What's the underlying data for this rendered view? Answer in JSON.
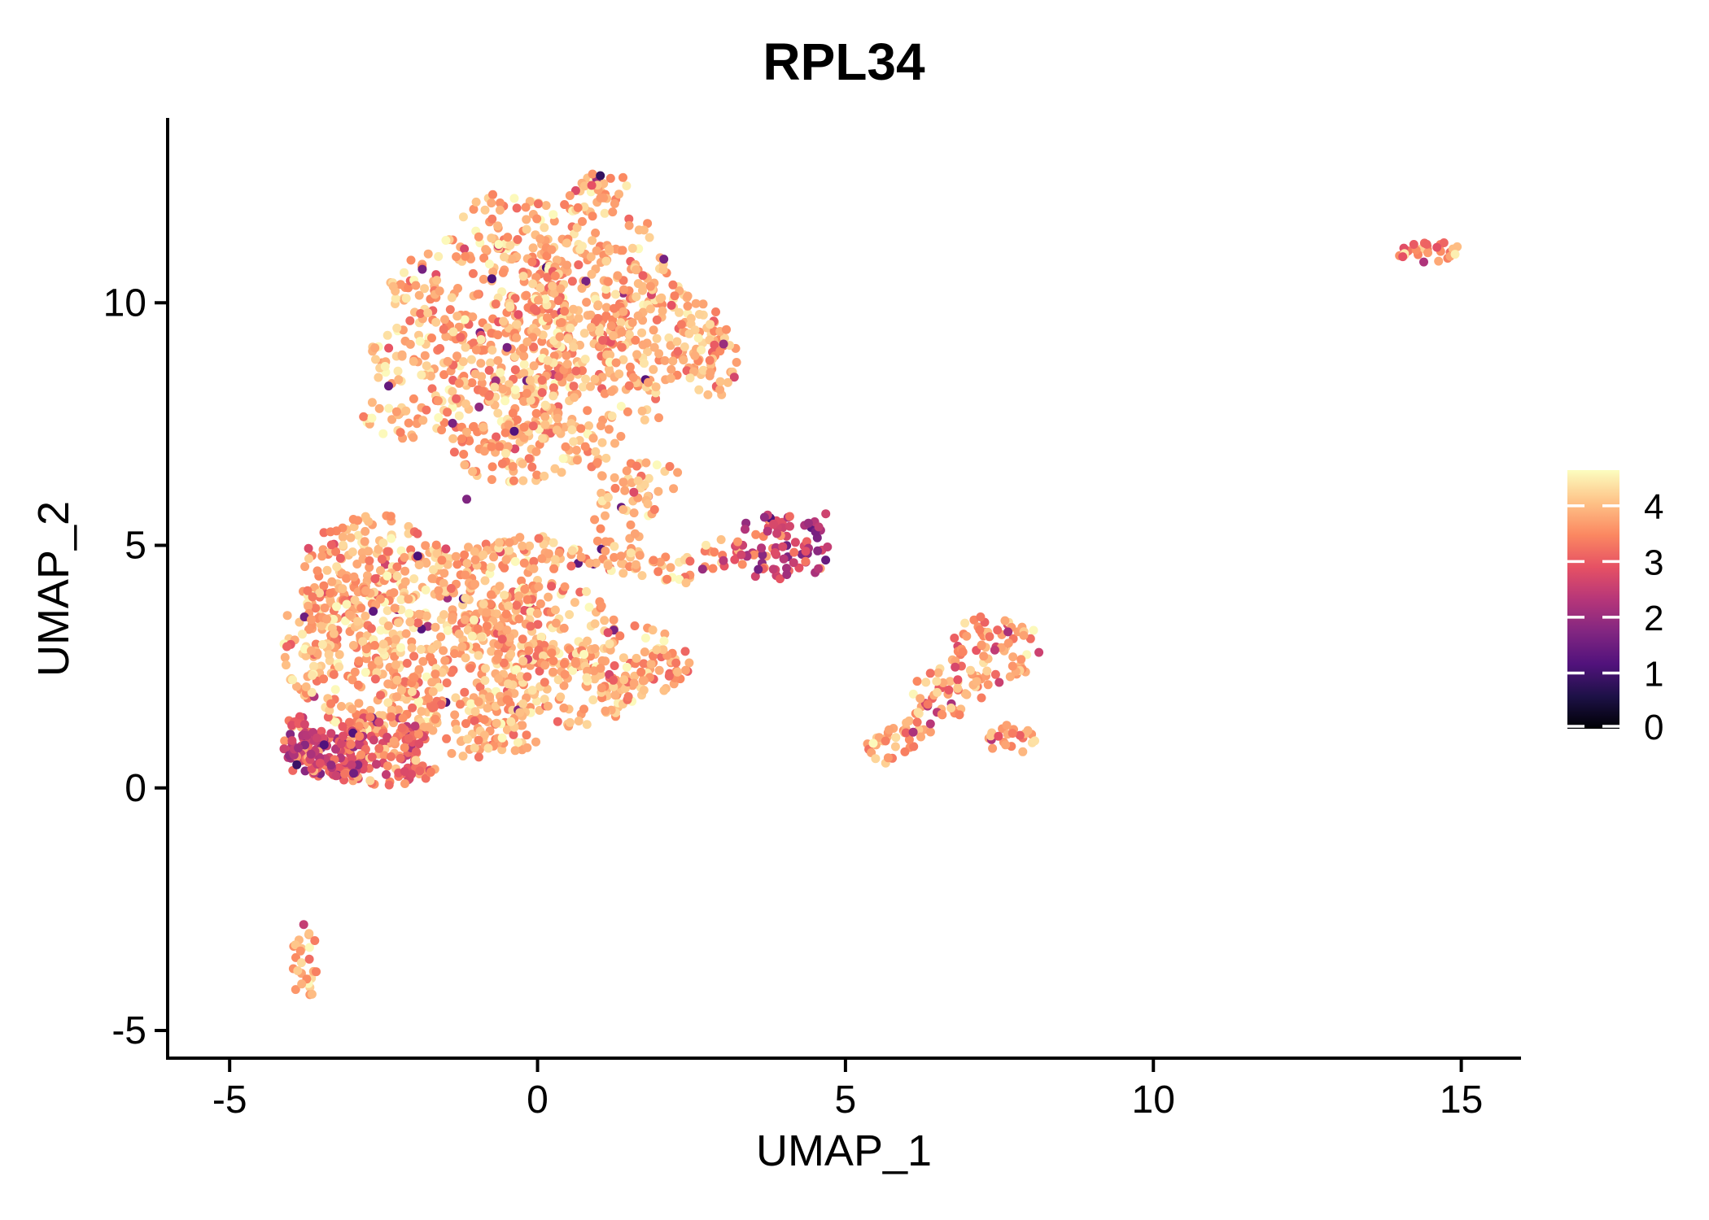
{
  "title": "RPL34",
  "axes": {
    "x": {
      "label": "UMAP_1",
      "ticks": [
        -5,
        0,
        5,
        10,
        15
      ]
    },
    "y": {
      "label": "UMAP_2",
      "ticks": [
        -5,
        0,
        5,
        10
      ]
    }
  },
  "legend": {
    "ticks": [
      0,
      1,
      2,
      3,
      4
    ],
    "min_value": 0,
    "max_value": 4.64,
    "colormap_name": "magma",
    "colormap_anchors": [
      "#000004",
      "#1D1147",
      "#51127C",
      "#822681",
      "#B63679",
      "#E65164",
      "#FB8861",
      "#FEC287",
      "#FCFDBF"
    ]
  },
  "chart_data": {
    "type": "scatter",
    "title": "RPL34",
    "xlabel": "UMAP_1",
    "ylabel": "UMAP_2",
    "xlim": [
      -6.02,
      15.97
    ],
    "ylim": [
      -5.57,
      13.81
    ],
    "x_ticks": [
      -5,
      0,
      5,
      10,
      15
    ],
    "y_ticks": [
      -5,
      0,
      5,
      10
    ],
    "grid": false,
    "legend_position": "right",
    "color_scale": {
      "name": "magma",
      "domain": [
        0,
        4.64
      ],
      "legend_ticks": [
        0,
        1,
        2,
        3,
        4
      ]
    },
    "point_radius_px": 5.5,
    "seed": 1337,
    "defaults": {
      "value_mean": 3.85,
      "value_sd": 0.42,
      "outlier_rate": 0.012,
      "outlier_range": [
        1.0,
        2.7
      ]
    },
    "clusters": [
      {
        "name": "upper-top-ridge",
        "shape": "disc",
        "cx": 0.3,
        "cy": 11.5,
        "rx": 1.6,
        "ry": 1.0,
        "n": 100
      },
      {
        "name": "upper-apex",
        "shape": "disc",
        "cx": 1.0,
        "cy": 12.3,
        "rx": 0.5,
        "ry": 0.5,
        "n": 22
      },
      {
        "name": "upper-left",
        "shape": "disc",
        "cx": -0.9,
        "cy": 10.3,
        "rx": 1.5,
        "ry": 1.1,
        "n": 140
      },
      {
        "name": "upper-mid-right",
        "shape": "disc",
        "cx": 0.9,
        "cy": 10.1,
        "rx": 1.6,
        "ry": 1.2,
        "n": 170
      },
      {
        "name": "upper-right",
        "shape": "disc",
        "cx": 2.0,
        "cy": 9.3,
        "rx": 1.1,
        "ry": 1.1,
        "n": 110
      },
      {
        "name": "upper-center",
        "shape": "disc",
        "cx": 0.0,
        "cy": 9.0,
        "rx": 1.5,
        "ry": 1.1,
        "n": 150
      },
      {
        "name": "upper-left-lower",
        "shape": "disc",
        "cx": -1.7,
        "cy": 8.9,
        "rx": 1.0,
        "ry": 0.95,
        "n": 90
      },
      {
        "name": "upper-bottom",
        "shape": "disc",
        "cx": 0.6,
        "cy": 8.0,
        "rx": 1.5,
        "ry": 1.0,
        "n": 120
      },
      {
        "name": "upper-bottom-left",
        "shape": "disc",
        "cx": -0.6,
        "cy": 7.6,
        "rx": 1.1,
        "ry": 0.7,
        "n": 80
      },
      {
        "name": "upper-right-bump",
        "shape": "disc",
        "cx": 2.7,
        "cy": 8.8,
        "rx": 0.55,
        "ry": 0.9,
        "n": 45
      },
      {
        "name": "neck",
        "shape": "disc",
        "cx": -0.2,
        "cy": 6.9,
        "rx": 1.3,
        "ry": 0.6,
        "n": 70
      },
      {
        "name": "neck-left-shoulder",
        "shape": "disc",
        "cx": -2.3,
        "cy": 7.65,
        "rx": 0.55,
        "ry": 0.5,
        "n": 28
      },
      {
        "name": "neck-right",
        "shape": "disc",
        "cx": 1.5,
        "cy": 6.4,
        "rx": 0.8,
        "ry": 0.6,
        "n": 25
      },
      {
        "name": "neck-right-strand",
        "shape": "disc",
        "cx": 1.4,
        "cy": 5.7,
        "rx": 0.5,
        "ry": 0.9,
        "n": 30
      },
      {
        "name": "lower-left-top",
        "shape": "disc",
        "cx": -2.7,
        "cy": 4.6,
        "rx": 1.1,
        "ry": 1.05,
        "n": 140
      },
      {
        "name": "lower-mid-top",
        "shape": "disc",
        "cx": -1.2,
        "cy": 4.15,
        "rx": 1.3,
        "ry": 0.95,
        "n": 150
      },
      {
        "name": "lower-left",
        "shape": "disc",
        "cx": -3.05,
        "cy": 3.2,
        "rx": 0.85,
        "ry": 0.95,
        "n": 115
      },
      {
        "name": "lower-center",
        "shape": "disc",
        "cx": -1.5,
        "cy": 2.7,
        "rx": 1.3,
        "ry": 0.95,
        "n": 150
      },
      {
        "name": "lower-right-top",
        "shape": "disc",
        "cx": 0.1,
        "cy": 3.3,
        "rx": 1.2,
        "ry": 0.95,
        "n": 130
      },
      {
        "name": "lower-right",
        "shape": "disc",
        "cx": 0.35,
        "cy": 2.05,
        "rx": 1.25,
        "ry": 0.85,
        "n": 125
      },
      {
        "name": "lower-left-bottom",
        "shape": "disc",
        "cx": -2.5,
        "cy": 1.65,
        "rx": 0.95,
        "ry": 0.75,
        "n": 105
      },
      {
        "name": "lower-right-edge",
        "shape": "disc",
        "cx": 1.55,
        "cy": 2.6,
        "rx": 0.95,
        "ry": 0.75,
        "n": 85
      },
      {
        "name": "lower-bottom-mid",
        "shape": "disc",
        "cx": -0.9,
        "cy": 1.25,
        "rx": 1.05,
        "ry": 0.65,
        "n": 85
      },
      {
        "name": "lower-left-strip",
        "shape": "disc",
        "cx": -3.7,
        "cy": 3.0,
        "rx": 0.45,
        "ry": 1.2,
        "n": 55
      },
      {
        "name": "lower-top-strip",
        "shape": "disc",
        "cx": 0.0,
        "cy": 4.85,
        "rx": 0.9,
        "ry": 0.35,
        "n": 45
      },
      {
        "name": "arm",
        "shape": "line",
        "x1": 0.9,
        "y1": 4.85,
        "x2": 2.6,
        "y2": 4.4,
        "w": 0.3,
        "n": 55
      },
      {
        "name": "arm-tip",
        "shape": "disc",
        "cx": 2.95,
        "cy": 4.8,
        "rx": 0.35,
        "ry": 0.4,
        "n": 10,
        "value_mean": 3.3,
        "value_sd": 0.5
      },
      {
        "name": "lower-transition",
        "shape": "disc",
        "cx": -2.55,
        "cy": 1.0,
        "rx": 0.75,
        "ry": 0.5,
        "n": 75,
        "value_mean": 3.2,
        "value_sd": 0.5
      },
      {
        "name": "lower-bottom-tail",
        "shape": "disc",
        "cx": -2.5,
        "cy": 0.35,
        "rx": 0.85,
        "ry": 0.3,
        "n": 55,
        "value_mean": 3.1,
        "value_sd": 0.5
      },
      {
        "name": "lower-far-left-edge",
        "shape": "disc",
        "cx": -3.95,
        "cy": 1.0,
        "rx": 0.25,
        "ry": 0.7,
        "n": 25,
        "value_mean": 3.0,
        "value_sd": 0.5
      },
      {
        "name": "lower-dark-corner",
        "shape": "disc",
        "cx": -3.35,
        "cy": 0.75,
        "rx": 0.7,
        "ry": 0.55,
        "n": 130,
        "value_mean": 2.7,
        "value_sd": 0.55,
        "outlier_rate": 0.03,
        "outlier_range": [
          1.7,
          2.1
        ]
      },
      {
        "name": "mid-dark-cluster",
        "shape": "disc",
        "cx": 3.95,
        "cy": 4.95,
        "rx": 0.8,
        "ry": 0.75,
        "n": 80,
        "value_mean": 2.45,
        "value_sd": 0.5,
        "outlier_rate": 0.1,
        "outlier_range": [
          3.4,
          4.0
        ]
      },
      {
        "name": "mid-dark-outskirt",
        "shape": "disc",
        "cx": 3.15,
        "cy": 4.85,
        "rx": 0.3,
        "ry": 0.35,
        "n": 8,
        "value_mean": 2.7,
        "value_sd": 0.6
      },
      {
        "name": "right-cluster-main",
        "shape": "disc",
        "cx": 7.45,
        "cy": 2.85,
        "rx": 0.75,
        "ry": 0.75,
        "n": 75,
        "value_mean": 3.7,
        "value_sd": 0.45,
        "outlier_rate": 0.07,
        "outlier_range": [
          2.0,
          2.9
        ]
      },
      {
        "name": "right-cluster-mid",
        "shape": "disc",
        "cx": 6.65,
        "cy": 2.0,
        "rx": 0.6,
        "ry": 0.55,
        "n": 45,
        "value_mean": 3.7,
        "value_sd": 0.45,
        "outlier_rate": 0.07,
        "outlier_range": [
          2.0,
          2.9
        ]
      },
      {
        "name": "right-cluster-tail",
        "shape": "line",
        "x1": 5.45,
        "y1": 0.65,
        "x2": 6.35,
        "y2": 1.35,
        "w": 0.28,
        "n": 40,
        "value_mean": 3.75,
        "value_sd": 0.4,
        "outlier_rate": 0.05,
        "outlier_range": [
          2.1,
          2.8
        ]
      },
      {
        "name": "right-cluster-lower",
        "shape": "disc",
        "cx": 7.7,
        "cy": 0.95,
        "rx": 0.45,
        "ry": 0.35,
        "n": 22,
        "value_mean": 3.8,
        "value_sd": 0.4
      },
      {
        "name": "far-right-cluster",
        "shape": "disc",
        "cx": 14.5,
        "cy": 11.05,
        "rx": 0.55,
        "ry": 0.22,
        "n": 26,
        "value_mean": 3.55,
        "value_sd": 0.5,
        "outlier_rate": 0.08,
        "outlier_range": [
          2.8,
          3.1
        ]
      },
      {
        "name": "bottom-left-strand",
        "shape": "disc",
        "cx": -3.78,
        "cy": -3.6,
        "rx": 0.22,
        "ry": 0.8,
        "n": 26,
        "value_mean": 3.85,
        "value_sd": 0.35
      },
      {
        "name": "dark-outlier-points",
        "shape": "points",
        "points": [
          [
            1.02,
            12.62,
            0.85
          ],
          [
            0.88,
            12.42,
            2.9
          ],
          [
            2.05,
            10.9,
            1.6
          ],
          [
            -0.95,
            7.85,
            1.9
          ],
          [
            3.02,
            9.15,
            2.0
          ],
          [
            -1.15,
            5.95,
            1.7
          ],
          [
            2.68,
            4.51,
            2.0
          ],
          [
            4.68,
            5.65,
            2.6
          ],
          [
            14.9,
            11.0,
            4.5
          ],
          [
            14.05,
            10.95,
            2.9
          ],
          [
            6.1,
            1.15,
            2.2
          ],
          [
            6.38,
            1.32,
            2.35
          ]
        ]
      }
    ]
  }
}
